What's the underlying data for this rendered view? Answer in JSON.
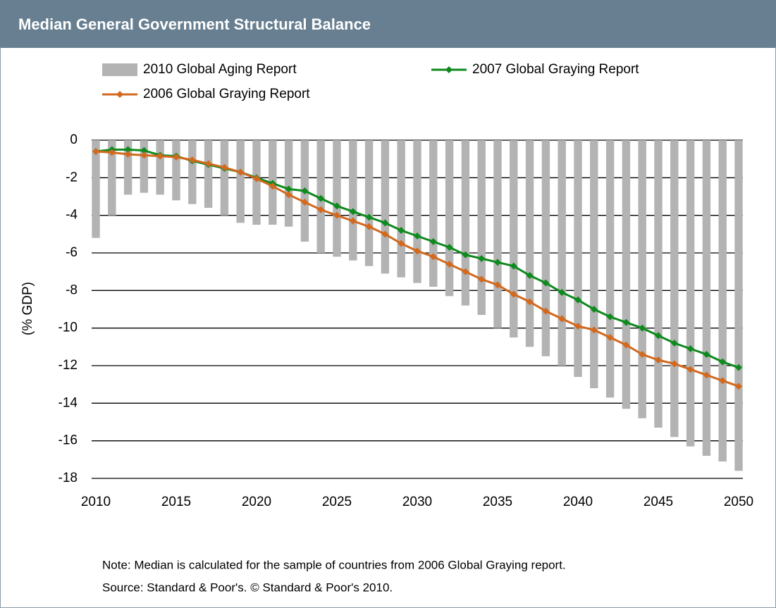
{
  "chart_data": {
    "type": "bar",
    "title": "Median General Government Structural Balance",
    "y_label": "(% GDP)",
    "notes": [
      "Note: Median is calculated for the sample of countries from 2006 Global Graying report.",
      "Source: Standard & Poor's. © Standard & Poor's 2010."
    ],
    "x": [
      2010,
      2011,
      2012,
      2013,
      2014,
      2015,
      2016,
      2017,
      2018,
      2019,
      2020,
      2021,
      2022,
      2023,
      2024,
      2025,
      2026,
      2027,
      2028,
      2029,
      2030,
      2031,
      2032,
      2033,
      2034,
      2035,
      2036,
      2037,
      2038,
      2039,
      2040,
      2041,
      2042,
      2043,
      2044,
      2045,
      2046,
      2047,
      2048,
      2049,
      2050
    ],
    "series": [
      {
        "name": "2010 Global Aging Report",
        "type": "bar",
        "color": "#b3b3b3",
        "values": [
          -5.2,
          -4.0,
          -2.9,
          -2.8,
          -2.9,
          -3.2,
          -3.4,
          -3.6,
          -4.0,
          -4.4,
          -4.5,
          -4.5,
          -4.6,
          -5.4,
          -6.0,
          -6.2,
          -6.4,
          -6.7,
          -7.1,
          -7.3,
          -7.6,
          -7.8,
          -8.3,
          -8.8,
          -9.3,
          -10.0,
          -10.5,
          -11.0,
          -11.5,
          -12.0,
          -12.6,
          -13.2,
          -13.7,
          -14.3,
          -14.8,
          -15.3,
          -15.8,
          -16.3,
          -16.8,
          -17.1,
          -17.6
        ]
      },
      {
        "name": "2007 Global Graying Report",
        "type": "line",
        "color": "#0f8a1e",
        "values": [
          -0.6,
          -0.5,
          -0.5,
          -0.55,
          -0.8,
          -0.85,
          -1.1,
          -1.3,
          -1.5,
          -1.7,
          -2.0,
          -2.3,
          -2.6,
          -2.7,
          -3.1,
          -3.5,
          -3.8,
          -4.1,
          -4.4,
          -4.8,
          -5.1,
          -5.4,
          -5.7,
          -6.1,
          -6.3,
          -6.5,
          -6.7,
          -7.2,
          -7.6,
          -8.1,
          -8.5,
          -9.0,
          -9.4,
          -9.7,
          -10.0,
          -10.4,
          -10.8,
          -11.1,
          -11.4,
          -11.8,
          -12.1
        ]
      },
      {
        "name": "2006 Global Graying Report",
        "type": "line",
        "color": "#d2691e",
        "values": [
          -0.6,
          -0.65,
          -0.75,
          -0.8,
          -0.85,
          -0.9,
          -1.05,
          -1.25,
          -1.45,
          -1.7,
          -2.05,
          -2.45,
          -2.9,
          -3.3,
          -3.7,
          -4.0,
          -4.3,
          -4.6,
          -5.0,
          -5.5,
          -5.9,
          -6.2,
          -6.6,
          -7.0,
          -7.4,
          -7.7,
          -8.2,
          -8.6,
          -9.1,
          -9.5,
          -9.9,
          -10.1,
          -10.5,
          -10.9,
          -11.4,
          -11.7,
          -11.9,
          -12.2,
          -12.5,
          -12.8,
          -13.1
        ]
      }
    ],
    "xlim": [
      2010,
      2050
    ],
    "xticks": [
      2010,
      2015,
      2020,
      2025,
      2030,
      2035,
      2040,
      2045,
      2050
    ],
    "ylim": [
      -18,
      0
    ],
    "yticks": [
      0,
      -2,
      -4,
      -6,
      -8,
      -10,
      -12,
      -14,
      -16,
      -18
    ],
    "grid": true
  }
}
